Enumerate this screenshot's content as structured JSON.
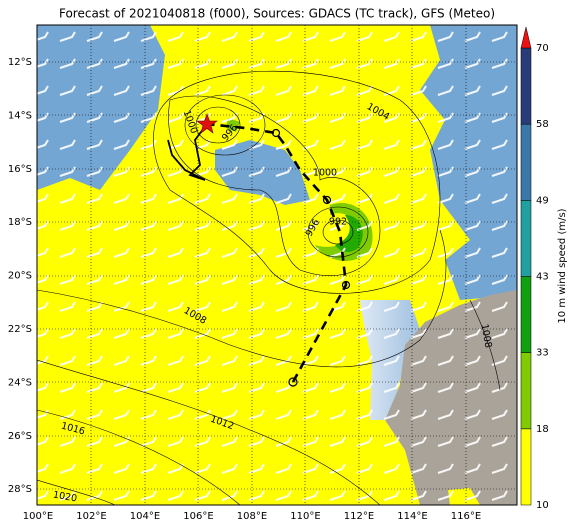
{
  "title": "Forecast of 2021040818 (f000), Sources: GDACS (TC track), GFS (Meteo)",
  "lon_labels": [
    "100°E",
    "102°E",
    "104°E",
    "106°E",
    "108°E",
    "110°E",
    "112°E",
    "114°E",
    "116°E"
  ],
  "lat_labels": [
    "12°S",
    "14°S",
    "16°S",
    "18°S",
    "20°S",
    "22°S",
    "24°S",
    "26°S",
    "28°S"
  ],
  "contour_labels": [
    "1004",
    "1000",
    "996",
    "992",
    "1008",
    "1012",
    "1016",
    "1020",
    "1008",
    "1000",
    "996"
  ],
  "colorbar": {
    "label": "10 m wind speed (m/s)",
    "ticks": [
      "10",
      "18",
      "33",
      "43",
      "49",
      "58",
      "70"
    ],
    "colors": [
      "#ffff00",
      "#80cc00",
      "#10a010",
      "#20a0a0",
      "#3a78aa",
      "#283c78",
      "#1c2456"
    ],
    "extend_color": "#ee1111"
  }
}
